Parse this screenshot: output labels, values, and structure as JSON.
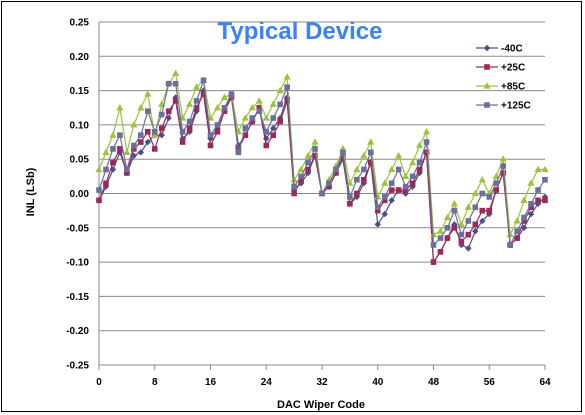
{
  "chart_data": {
    "type": "line",
    "title": "Typical Device",
    "xlabel": "DAC Wiper Code",
    "ylabel": "INL (LSb)",
    "xlim": [
      0,
      64
    ],
    "ylim": [
      -0.25,
      0.25
    ],
    "xticks": [
      0,
      8,
      16,
      24,
      32,
      40,
      48,
      56,
      64
    ],
    "yticks": [
      -0.25,
      -0.2,
      -0.15,
      -0.1,
      -0.05,
      0.0,
      0.05,
      0.1,
      0.15,
      0.2,
      0.25
    ],
    "ytick_labels": [
      "-0.25",
      "-0.20",
      "-0.15",
      "-0.10",
      "-0.05",
      "0.00",
      "0.05",
      "0.10",
      "0.15",
      "0.20",
      "0.25"
    ],
    "grid": "horizontal",
    "legend_position": "top-right",
    "x": [
      0,
      1,
      2,
      3,
      4,
      5,
      6,
      7,
      8,
      9,
      10,
      11,
      12,
      13,
      14,
      15,
      16,
      17,
      18,
      19,
      20,
      21,
      22,
      23,
      24,
      25,
      26,
      27,
      28,
      29,
      30,
      31,
      32,
      33,
      34,
      35,
      36,
      37,
      38,
      39,
      40,
      41,
      42,
      43,
      44,
      45,
      46,
      47,
      48,
      49,
      50,
      51,
      52,
      53,
      54,
      55,
      56,
      57,
      58,
      59,
      60,
      61,
      62,
      63,
      64
    ],
    "series": [
      {
        "name": "-40C",
        "color": "#4a4e8c",
        "marker": "diamond",
        "values": [
          -0.01,
          0.01,
          0.035,
          0.06,
          0.03,
          0.055,
          0.06,
          0.075,
          0.085,
          0.085,
          0.11,
          0.14,
          0.08,
          0.09,
          0.12,
          0.15,
          0.08,
          0.095,
          0.12,
          0.145,
          0.07,
          0.085,
          0.105,
          0.125,
          0.08,
          0.095,
          0.11,
          0.14,
          0.005,
          0.015,
          0.03,
          0.055,
          0.0,
          0.01,
          0.03,
          0.05,
          -0.015,
          -0.005,
          0.015,
          0.045,
          -0.045,
          -0.03,
          -0.01,
          0.005,
          0.0,
          0.01,
          0.03,
          0.06,
          -0.1,
          -0.085,
          -0.065,
          -0.045,
          -0.075,
          -0.08,
          -0.055,
          -0.04,
          -0.03,
          0.005,
          0.03,
          -0.075,
          -0.065,
          -0.05,
          -0.03,
          -0.015,
          -0.005
        ]
      },
      {
        "name": "+25C",
        "color": "#9b2a5b",
        "marker": "square",
        "values": [
          -0.01,
          0.015,
          0.045,
          0.065,
          0.03,
          0.065,
          0.075,
          0.09,
          0.065,
          0.095,
          0.12,
          0.135,
          0.075,
          0.095,
          0.125,
          0.145,
          0.07,
          0.09,
          0.12,
          0.14,
          0.065,
          0.085,
          0.105,
          0.125,
          0.07,
          0.085,
          0.105,
          0.135,
          0.0,
          0.02,
          0.035,
          0.055,
          0.0,
          0.01,
          0.03,
          0.055,
          -0.015,
          0.0,
          0.02,
          0.045,
          -0.025,
          -0.01,
          0.005,
          0.005,
          0.005,
          0.015,
          0.035,
          0.06,
          -0.1,
          -0.085,
          -0.065,
          -0.05,
          -0.07,
          -0.06,
          -0.045,
          -0.025,
          -0.025,
          0.005,
          0.03,
          -0.075,
          -0.065,
          -0.04,
          -0.02,
          -0.01,
          -0.01
        ]
      },
      {
        "name": "+85C",
        "color": "#9cc43a",
        "marker": "triangle",
        "values": [
          0.035,
          0.06,
          0.085,
          0.125,
          0.06,
          0.1,
          0.125,
          0.145,
          0.085,
          0.13,
          0.16,
          0.175,
          0.11,
          0.13,
          0.155,
          0.165,
          0.11,
          0.125,
          0.14,
          0.145,
          0.09,
          0.11,
          0.125,
          0.135,
          0.11,
          0.13,
          0.15,
          0.17,
          0.02,
          0.035,
          0.055,
          0.075,
          0.0,
          0.02,
          0.04,
          0.065,
          0.015,
          0.035,
          0.055,
          0.075,
          -0.005,
          0.015,
          0.035,
          0.055,
          0.025,
          0.045,
          0.07,
          0.09,
          -0.06,
          -0.055,
          -0.035,
          -0.015,
          -0.045,
          -0.02,
          0.0,
          0.02,
          0.0,
          0.025,
          0.05,
          -0.06,
          -0.04,
          -0.01,
          0.015,
          0.035,
          0.035
        ]
      },
      {
        "name": "+125C",
        "color": "#6b6f9c",
        "marker": "square",
        "values": [
          0.005,
          0.035,
          0.065,
          0.085,
          0.035,
          0.07,
          0.085,
          0.12,
          0.09,
          0.115,
          0.16,
          0.16,
          0.09,
          0.105,
          0.135,
          0.165,
          0.085,
          0.1,
          0.125,
          0.145,
          0.06,
          0.095,
          0.11,
          0.12,
          0.09,
          0.11,
          0.13,
          0.155,
          0.01,
          0.025,
          0.045,
          0.065,
          0.0,
          0.015,
          0.035,
          0.06,
          -0.005,
          0.02,
          0.035,
          0.06,
          -0.02,
          -0.005,
          0.015,
          0.035,
          0.01,
          0.025,
          0.045,
          0.075,
          -0.075,
          -0.065,
          -0.05,
          -0.025,
          -0.06,
          -0.04,
          -0.02,
          0.0,
          -0.005,
          0.015,
          0.04,
          -0.075,
          -0.055,
          -0.035,
          -0.015,
          0.005,
          0.02
        ]
      }
    ]
  }
}
